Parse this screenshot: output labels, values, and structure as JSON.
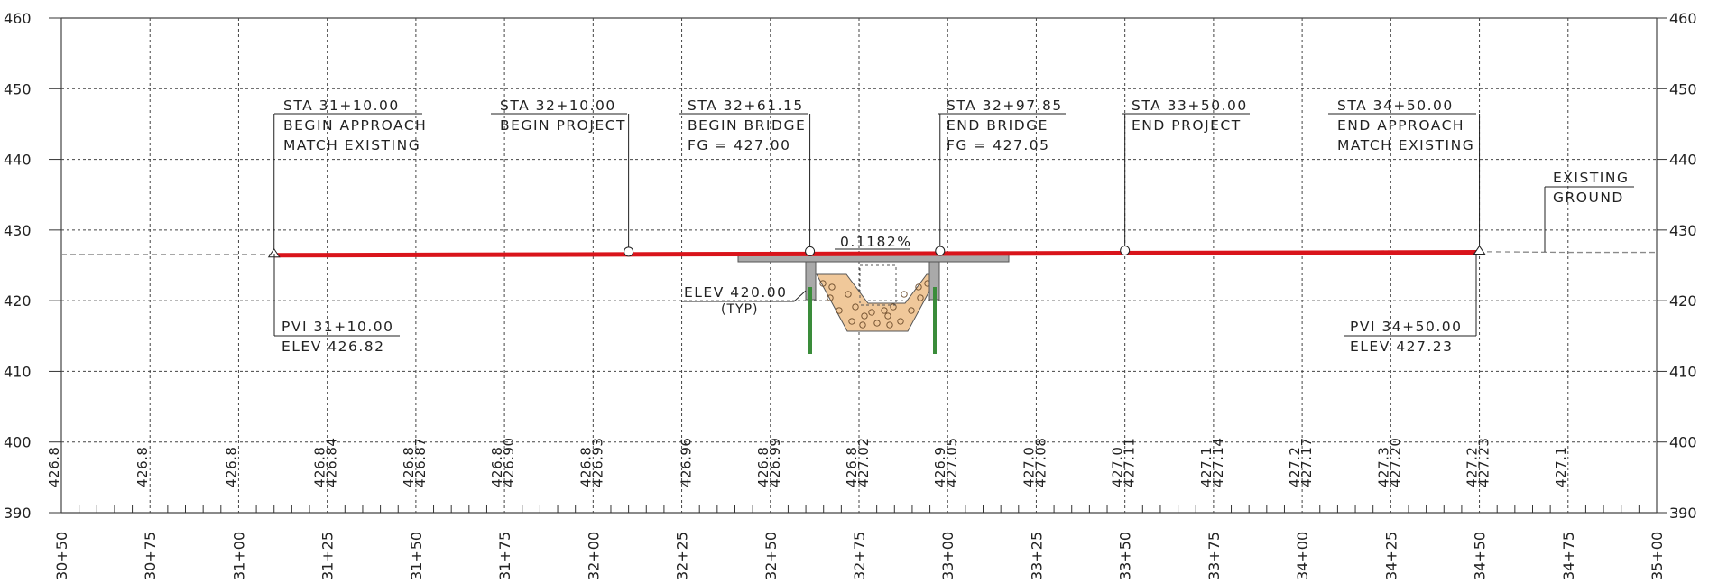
{
  "chart_data": {
    "type": "profile",
    "x_range": [
      3050,
      3500
    ],
    "y_range": [
      390,
      460
    ],
    "grid": true,
    "y_ticks": [
      "390",
      "400",
      "410",
      "420",
      "430",
      "440",
      "450",
      "460"
    ],
    "x_ticks": [
      {
        "sta": 3050,
        "label": "30+50"
      },
      {
        "sta": 3075,
        "label": "30+75"
      },
      {
        "sta": 3100,
        "label": "31+00"
      },
      {
        "sta": 3125,
        "label": "31+25"
      },
      {
        "sta": 3150,
        "label": "31+50"
      },
      {
        "sta": 3175,
        "label": "31+75"
      },
      {
        "sta": 3200,
        "label": "32+00"
      },
      {
        "sta": 3225,
        "label": "32+25"
      },
      {
        "sta": 3250,
        "label": "32+50"
      },
      {
        "sta": 3275,
        "label": "32+75"
      },
      {
        "sta": 3300,
        "label": "33+00"
      },
      {
        "sta": 3325,
        "label": "33+25"
      },
      {
        "sta": 3350,
        "label": "33+50"
      },
      {
        "sta": 3375,
        "label": "33+75"
      },
      {
        "sta": 3400,
        "label": "34+00"
      },
      {
        "sta": 3425,
        "label": "34+25"
      },
      {
        "sta": 3450,
        "label": "34+50"
      },
      {
        "sta": 3475,
        "label": "34+75"
      },
      {
        "sta": 3500,
        "label": "35+00"
      }
    ],
    "existing_ground_values": [
      {
        "sta": 3050,
        "text": "426.8"
      },
      {
        "sta": 3075,
        "text": "426.8"
      },
      {
        "sta": 3100,
        "text": "426.8"
      },
      {
        "sta": 3125,
        "text": "426.8"
      },
      {
        "sta": 3150,
        "text": "426.8"
      },
      {
        "sta": 3175,
        "text": "426.8"
      },
      {
        "sta": 3200,
        "text": "426.8"
      },
      {
        "sta": 3250,
        "text": "426.8"
      },
      {
        "sta": 3275,
        "text": "426.8"
      },
      {
        "sta": 3300,
        "text": "426.9"
      },
      {
        "sta": 3325,
        "text": "427.0"
      },
      {
        "sta": 3350,
        "text": "427.0"
      },
      {
        "sta": 3375,
        "text": "427.1"
      },
      {
        "sta": 3400,
        "text": "427.2"
      },
      {
        "sta": 3425,
        "text": "427.3"
      },
      {
        "sta": 3450,
        "text": "427.2"
      },
      {
        "sta": 3475,
        "text": "427.1"
      }
    ],
    "proposed_values": [
      {
        "sta": 3125,
        "text": "426.84"
      },
      {
        "sta": 3150,
        "text": "426.87"
      },
      {
        "sta": 3175,
        "text": "426.90"
      },
      {
        "sta": 3200,
        "text": "426.93"
      },
      {
        "sta": 3225,
        "text": "426.96"
      },
      {
        "sta": 3250,
        "text": "426.99"
      },
      {
        "sta": 3275,
        "text": "427.02"
      },
      {
        "sta": 3300,
        "text": "427.05"
      },
      {
        "sta": 3325,
        "text": "427.08"
      },
      {
        "sta": 3350,
        "text": "427.11"
      },
      {
        "sta": 3375,
        "text": "427.14"
      },
      {
        "sta": 3400,
        "text": "427.17"
      },
      {
        "sta": 3425,
        "text": "427.20"
      },
      {
        "sta": 3450,
        "text": "427.23"
      }
    ],
    "existing_ground": {
      "stations": [
        3050,
        3075,
        3100,
        3125,
        3150,
        3175,
        3200,
        3225,
        3250,
        3275,
        3300,
        3325,
        3350,
        3375,
        3400,
        3425,
        3450,
        3475,
        3500
      ],
      "elevations": [
        426.8,
        426.8,
        426.8,
        426.8,
        426.8,
        426.8,
        426.8,
        426.85,
        426.8,
        426.8,
        426.9,
        427.0,
        427.0,
        427.1,
        427.2,
        427.3,
        427.2,
        427.1,
        427.1
      ]
    },
    "proposed_profile": {
      "start": {
        "sta": 3110,
        "elev": 426.82
      },
      "end": {
        "sta": 3450,
        "elev": 427.23
      },
      "grade": "0.1182%"
    },
    "callouts": [
      {
        "id": "sta-3110",
        "sta": 3110,
        "elev": 426.82,
        "lines": [
          "STA 31+10.00",
          "BEGIN APPROACH",
          "MATCH EXISTING"
        ]
      },
      {
        "id": "sta-3210",
        "sta": 3210,
        "elev": 426.94,
        "lines": [
          "STA 32+10.00",
          "BEGIN PROJECT"
        ]
      },
      {
        "id": "sta-3261",
        "sta": 3261.15,
        "elev": 427.0,
        "lines": [
          "STA 32+61.15",
          "BEGIN BRIDGE",
          "FG = 427.00"
        ]
      },
      {
        "id": "sta-3298",
        "sta": 3297.85,
        "elev": 427.05,
        "lines": [
          "STA 32+97.85",
          "END BRIDGE",
          "FG = 427.05"
        ]
      },
      {
        "id": "sta-3350",
        "sta": 3350,
        "elev": 427.11,
        "lines": [
          "STA 33+50.00",
          "END PROJECT"
        ]
      },
      {
        "id": "sta-3450",
        "sta": 3450,
        "elev": 427.23,
        "lines": [
          "STA 34+50.00",
          "END APPROACH",
          "MATCH EXISTING"
        ]
      }
    ],
    "pvi": [
      {
        "id": "pvi-begin",
        "lines": [
          "PVI 31+10.00",
          "ELEV 426.82"
        ]
      },
      {
        "id": "pvi-end",
        "lines": [
          "PVI 34+50.00",
          "ELEV 427.23"
        ]
      }
    ],
    "existing_ground_label": [
      "EXISTING",
      "GROUND"
    ],
    "elev_note": [
      "ELEV 420.00",
      "(TYP)"
    ],
    "grade_label": "0.1182%",
    "colors": {
      "profile": "#d9141b",
      "deck": "#a9a9a9",
      "riprap": "#f0c89a",
      "piles": "#3a8c3a",
      "grid": "#444444",
      "ground": "#8a8a8a"
    }
  }
}
